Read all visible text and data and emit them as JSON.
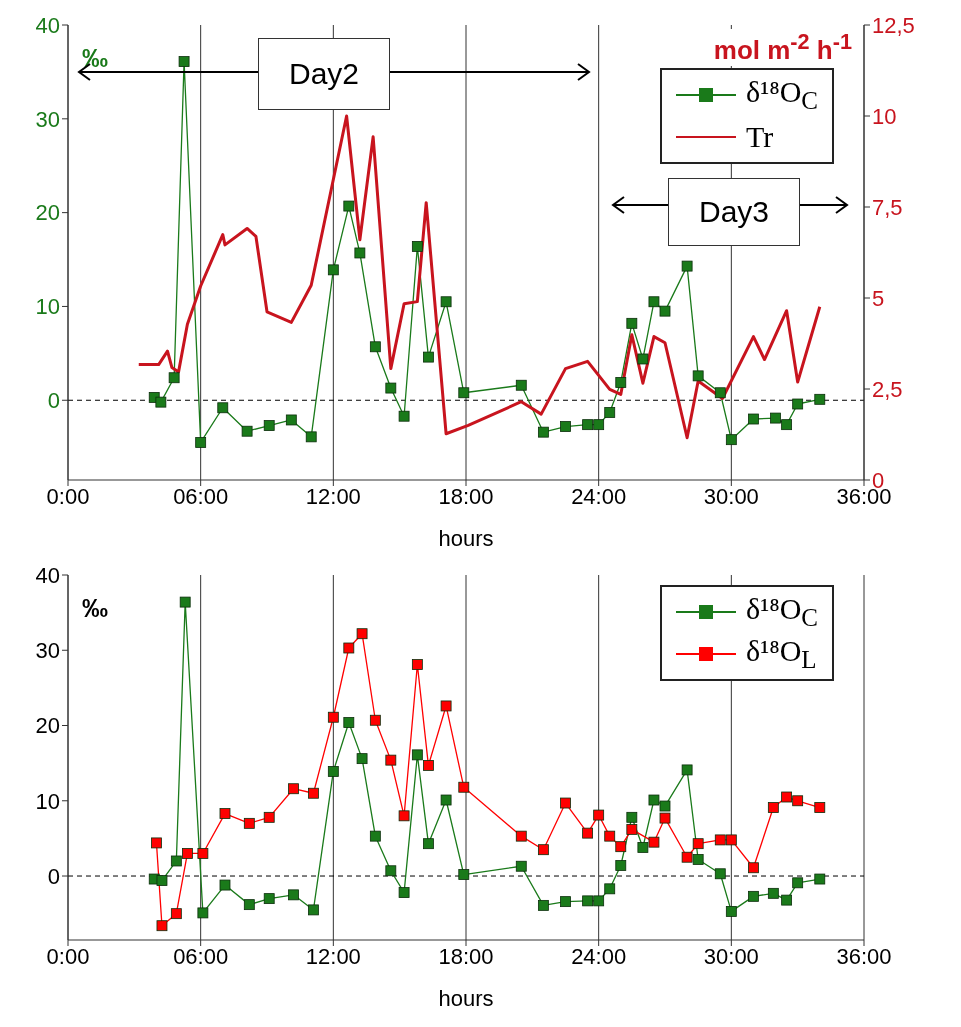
{
  "chart_data": [
    {
      "type": "line",
      "ylabel": "‰",
      "y2label": "mol m$^{-2}$ h$^{-1}$",
      "xlabel": "hours",
      "annotations": [
        "Day2",
        "Day3"
      ],
      "xlim": [
        0,
        36
      ],
      "xticks": [
        {
          "value": 0,
          "label": "0:00"
        },
        {
          "value": 6,
          "label": "06:00"
        },
        {
          "value": 12,
          "label": "12:00"
        },
        {
          "value": 18,
          "label": "18:00"
        },
        {
          "value": 24,
          "label": "24:00"
        },
        {
          "value": 30,
          "label": "30:00"
        },
        {
          "value": 36,
          "label": "36:00"
        }
      ],
      "ylim": [
        -8.5,
        40
      ],
      "yticks": [
        0,
        10,
        20,
        30,
        40
      ],
      "y2lim": [
        0,
        12.5
      ],
      "y2ticks": [
        0,
        {
          "value": 2.5,
          "label": "2,5"
        },
        5,
        {
          "value": 7.5,
          "label": "7,5"
        },
        10,
        {
          "value": 12.5,
          "label": "12,5"
        }
      ],
      "grid": "x",
      "legend": "top right",
      "marker": "square",
      "ref_lines": [
        {
          "axis": "y",
          "value": 0,
          "color": "#000000",
          "line_style": "dashed"
        }
      ],
      "series": [
        {
          "name": "δ¹⁸O$_{C}$",
          "color": "#1a7a1a",
          "x": [
            3.9,
            4.2,
            4.8,
            5.25,
            6.0,
            7.0,
            8.1,
            9.1,
            10.1,
            11.0,
            12.0,
            12.7,
            13.2,
            13.9,
            14.6,
            15.2,
            15.8,
            16.3,
            17.1,
            17.9,
            20.5,
            21.5,
            22.5,
            23.5,
            24.0,
            24.5,
            25.0,
            25.5,
            26.0,
            26.5,
            27.0,
            28.0,
            28.5,
            29.5,
            30.0,
            31.0,
            32.0,
            32.5,
            33.0,
            34.0
          ],
          "values": [
            0.3,
            -0.2,
            2.4,
            36.1,
            -4.5,
            -0.8,
            -3.3,
            -2.7,
            -2.1,
            -3.9,
            13.9,
            20.7,
            15.7,
            5.7,
            1.3,
            -1.7,
            16.4,
            4.6,
            10.5,
            0.8,
            1.6,
            -3.4,
            -2.8,
            -2.6,
            -2.6,
            -1.3,
            1.9,
            8.2,
            4.4,
            10.5,
            9.5,
            14.3,
            2.6,
            0.8,
            -4.2,
            -2.0,
            -1.9,
            -2.6,
            -0.4,
            0.1
          ]
        },
        {
          "name": "Tr",
          "color": "#c8141e",
          "axis": "y2",
          "marker": "none",
          "x": [
            3.2,
            4.1,
            4.5,
            4.7,
            5.0,
            5.4,
            6.0,
            7.0,
            7.1,
            8.1,
            8.5,
            9.0,
            10.1,
            11.0,
            12.6,
            13.2,
            13.8,
            14.6,
            15.2,
            15.8,
            16.2,
            17.1,
            18.1,
            20.5,
            21.4,
            22.5,
            23.5,
            24.5,
            25.0,
            25.5,
            26.0,
            26.5,
            27.0,
            28.0,
            28.5,
            29.6,
            31.0,
            31.5,
            32.5,
            33.0,
            34.0
          ],
          "values": [
            3.17,
            3.17,
            3.54,
            3.09,
            2.97,
            4.28,
            5.33,
            6.74,
            6.46,
            6.91,
            6.69,
            4.62,
            4.33,
            5.35,
            10.0,
            6.6,
            9.43,
            3.06,
            4.84,
            4.9,
            7.62,
            1.27,
            1.5,
            2.15,
            1.81,
            3.06,
            3.26,
            2.49,
            2.35,
            3.99,
            2.66,
            3.94,
            3.77,
            1.16,
            2.72,
            2.24,
            3.94,
            3.31,
            4.65,
            2.69,
            4.76
          ]
        }
      ]
    },
    {
      "type": "line",
      "ylabel": "‰",
      "xlabel": "hours",
      "xlim": [
        0,
        36
      ],
      "xticks": [
        {
          "value": 0,
          "label": "0:00"
        },
        {
          "value": 6,
          "label": "06:00"
        },
        {
          "value": 12,
          "label": "12:00"
        },
        {
          "value": 18,
          "label": "18:00"
        },
        {
          "value": 24,
          "label": "24:00"
        },
        {
          "value": 30,
          "label": "30:00"
        },
        {
          "value": 36,
          "label": "36:00"
        }
      ],
      "ylim": [
        -8.5,
        40
      ],
      "yticks": [
        0,
        10,
        20,
        30,
        40
      ],
      "grid": "x",
      "legend": "top right",
      "marker": "square",
      "ref_lines": [
        {
          "axis": "y",
          "value": 0,
          "color": "#000000",
          "line_style": "dashed"
        }
      ],
      "series": [
        {
          "name": "δ¹⁸O$_{C}$",
          "color": "#1a7a1a",
          "x": [
            3.9,
            4.25,
            4.9,
            5.3,
            6.1,
            7.1,
            8.2,
            9.1,
            10.2,
            11.1,
            12.0,
            12.7,
            13.3,
            13.9,
            14.6,
            15.2,
            15.8,
            16.3,
            17.1,
            17.9,
            20.5,
            21.5,
            22.5,
            23.5,
            24.0,
            24.5,
            25.0,
            25.5,
            26.0,
            26.5,
            27.0,
            28.0,
            28.5,
            29.5,
            30.0,
            31.0,
            31.9,
            32.5,
            33.0,
            34.0
          ],
          "values": [
            -0.4,
            -0.6,
            2.0,
            36.4,
            -4.9,
            -1.2,
            -3.8,
            -3.0,
            -2.5,
            -4.5,
            13.9,
            20.4,
            15.6,
            5.3,
            0.7,
            -2.2,
            16.1,
            4.3,
            10.1,
            0.2,
            1.3,
            -3.9,
            -3.4,
            -3.3,
            -3.3,
            -1.7,
            1.4,
            7.8,
            3.8,
            10.1,
            9.3,
            14.1,
            2.2,
            0.3,
            -4.7,
            -2.7,
            -2.3,
            -3.2,
            -0.9,
            -0.4
          ]
        },
        {
          "name": "δ¹⁸O$_{L}$",
          "color": "#ff0000",
          "x": [
            4.0,
            4.25,
            4.9,
            5.4,
            6.1,
            7.1,
            8.2,
            9.1,
            10.2,
            11.1,
            12.0,
            12.7,
            13.3,
            13.9,
            14.6,
            15.2,
            15.8,
            16.3,
            17.1,
            17.9,
            20.5,
            21.5,
            22.5,
            23.5,
            24.0,
            24.5,
            25.0,
            25.5,
            26.5,
            27.0,
            28.0,
            28.5,
            29.5,
            30.0,
            31.0,
            31.9,
            32.5,
            33.0,
            34.0
          ],
          "values": [
            4.4,
            -6.6,
            -5.0,
            3.0,
            3.0,
            8.3,
            7.0,
            7.8,
            11.6,
            11.0,
            21.1,
            30.3,
            32.2,
            20.7,
            15.4,
            8.0,
            28.1,
            14.7,
            22.6,
            11.8,
            5.3,
            3.5,
            9.7,
            5.7,
            8.1,
            5.3,
            3.9,
            6.2,
            4.5,
            7.7,
            2.5,
            4.3,
            4.8,
            4.8,
            1.1,
            9.1,
            10.5,
            10.0,
            9.1
          ]
        }
      ]
    }
  ]
}
